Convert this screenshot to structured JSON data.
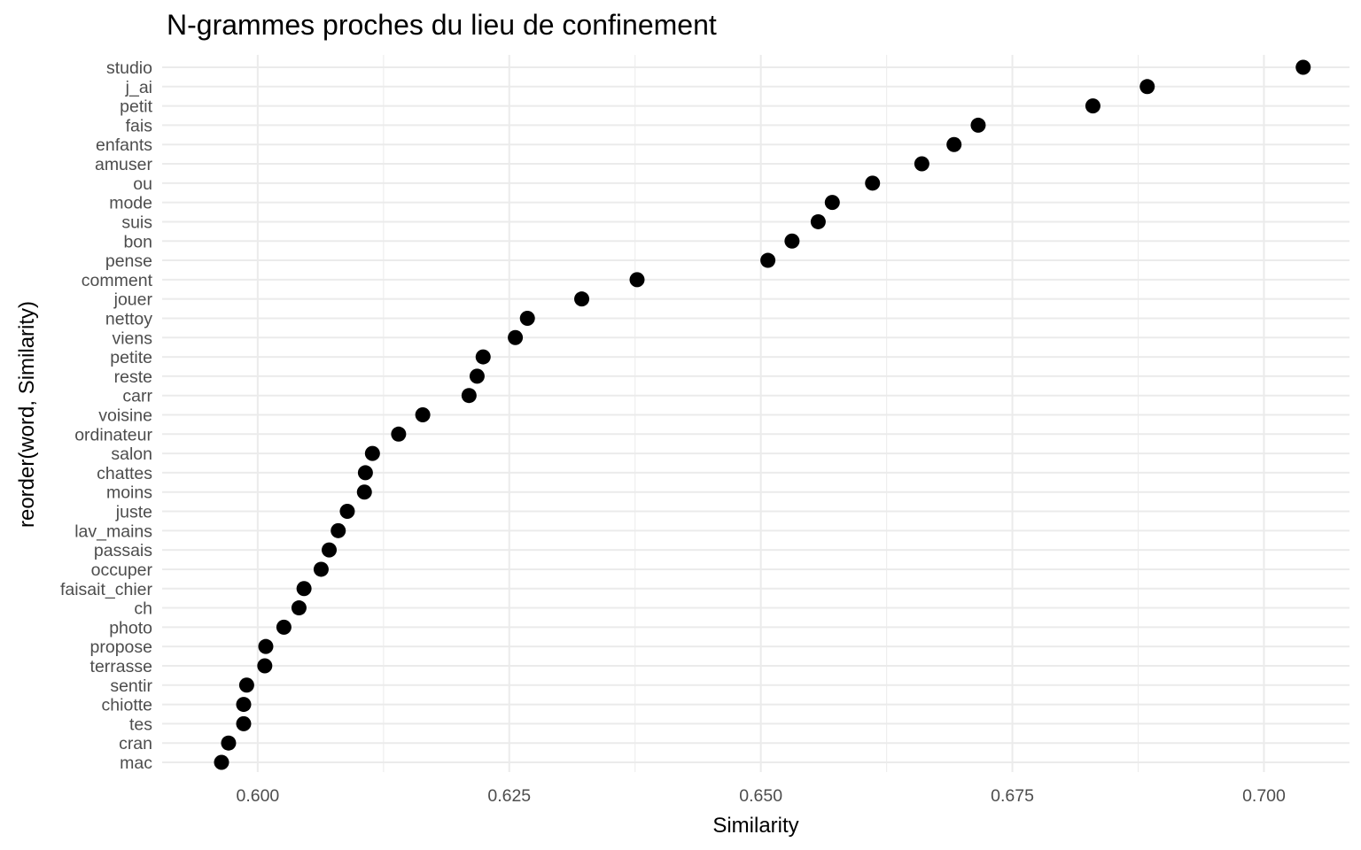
{
  "chart_data": {
    "type": "scatter",
    "title": "N-grammes proches du lieu de confinement",
    "xlabel": "Similarity",
    "ylabel": "reorder(word, Similarity)",
    "xlim": [
      0.5905,
      0.7085
    ],
    "xticks": [
      "0.600",
      "0.625",
      "0.650",
      "0.675",
      "0.700"
    ],
    "xtick_values": [
      0.6,
      0.625,
      0.65,
      0.675,
      0.7
    ],
    "grid": true,
    "point_color": "#000000",
    "grid_color": "#ebebeb",
    "points": [
      {
        "word": "studio",
        "x": 0.7039
      },
      {
        "word": "j_ai",
        "x": 0.6884
      },
      {
        "word": "petit",
        "x": 0.683
      },
      {
        "word": "fais",
        "x": 0.6716
      },
      {
        "word": "enfants",
        "x": 0.6692
      },
      {
        "word": "amuser",
        "x": 0.666
      },
      {
        "word": "ou",
        "x": 0.6611
      },
      {
        "word": "mode",
        "x": 0.6571
      },
      {
        "word": "suis",
        "x": 0.6557
      },
      {
        "word": "bon",
        "x": 0.6531
      },
      {
        "word": "pense",
        "x": 0.6507
      },
      {
        "word": "comment",
        "x": 0.6377
      },
      {
        "word": "jouer",
        "x": 0.6322
      },
      {
        "word": "nettoy",
        "x": 0.6268
      },
      {
        "word": "viens",
        "x": 0.6256
      },
      {
        "word": "petite",
        "x": 0.6224
      },
      {
        "word": "reste",
        "x": 0.6218
      },
      {
        "word": "carr",
        "x": 0.621
      },
      {
        "word": "voisine",
        "x": 0.6164
      },
      {
        "word": "ordinateur",
        "x": 0.614
      },
      {
        "word": "salon",
        "x": 0.6114
      },
      {
        "word": "chattes",
        "x": 0.6107
      },
      {
        "word": "moins",
        "x": 0.6106
      },
      {
        "word": "juste",
        "x": 0.6089
      },
      {
        "word": "lav_mains",
        "x": 0.608
      },
      {
        "word": "passais",
        "x": 0.6071
      },
      {
        "word": "occuper",
        "x": 0.6063
      },
      {
        "word": "faisait_chier",
        "x": 0.6046
      },
      {
        "word": "ch",
        "x": 0.6041
      },
      {
        "word": "photo",
        "x": 0.6026
      },
      {
        "word": "propose",
        "x": 0.6008
      },
      {
        "word": "terrasse",
        "x": 0.6007
      },
      {
        "word": "sentir",
        "x": 0.5989
      },
      {
        "word": "chiotte",
        "x": 0.5986
      },
      {
        "word": "tes",
        "x": 0.5986
      },
      {
        "word": "cran",
        "x": 0.5971
      },
      {
        "word": "mac",
        "x": 0.5964
      }
    ]
  }
}
